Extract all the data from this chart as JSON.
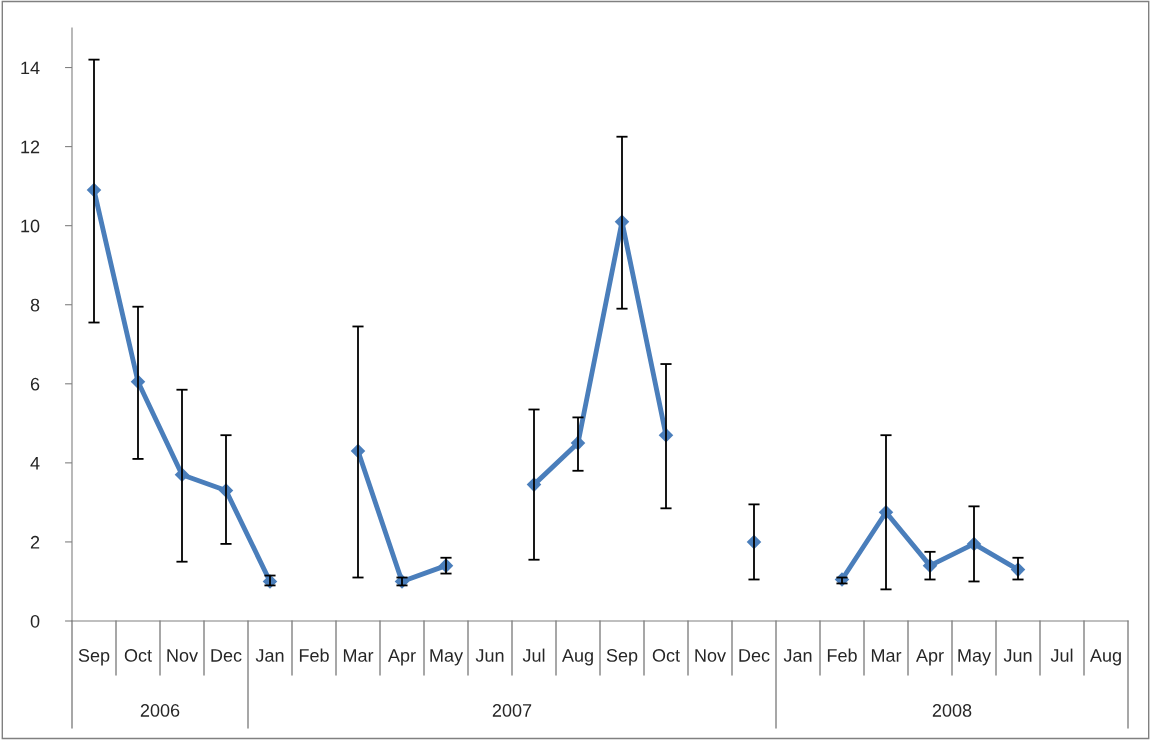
{
  "chart_data": {
    "type": "line",
    "categories": [
      "Sep",
      "Oct",
      "Nov",
      "Dec",
      "Jan",
      "Feb",
      "Mar",
      "Apr",
      "May",
      "Jun",
      "Jul",
      "Aug",
      "Sep",
      "Oct",
      "Nov",
      "Dec",
      "Jan",
      "Feb",
      "Mar",
      "Apr",
      "May",
      "Jun",
      "Jul",
      "Aug"
    ],
    "series": [
      {
        "color": "#4a7ebb",
        "values": [
          10.9,
          6.05,
          3.7,
          3.3,
          1.0,
          null,
          4.3,
          1.0,
          1.4,
          null,
          3.45,
          4.5,
          10.1,
          4.7,
          null,
          2.0,
          null,
          1.05,
          2.75,
          1.4,
          1.95,
          1.3,
          null,
          null
        ],
        "errors": [
          [
            7.55,
            14.2
          ],
          [
            4.1,
            7.95
          ],
          [
            1.5,
            5.85
          ],
          [
            1.95,
            4.7
          ],
          [
            0.9,
            1.15
          ],
          null,
          [
            1.1,
            7.45
          ],
          [
            0.9,
            1.1
          ],
          [
            1.2,
            1.6
          ],
          null,
          [
            1.55,
            5.35
          ],
          [
            3.8,
            5.15
          ],
          [
            7.9,
            12.25
          ],
          [
            2.85,
            6.5
          ],
          null,
          [
            1.05,
            2.95
          ],
          null,
          [
            0.95,
            1.1
          ],
          [
            0.8,
            4.7
          ],
          [
            1.05,
            1.75
          ],
          [
            1.0,
            2.9
          ],
          [
            1.05,
            1.6
          ],
          null,
          null
        ]
      }
    ],
    "ylim": [
      0,
      15
    ],
    "yticks": [
      0,
      2,
      4,
      6,
      8,
      10,
      12,
      14
    ],
    "marker": "diamond",
    "line_style": "solid",
    "annotations": [
      "2006",
      "2007",
      "2008"
    ]
  }
}
